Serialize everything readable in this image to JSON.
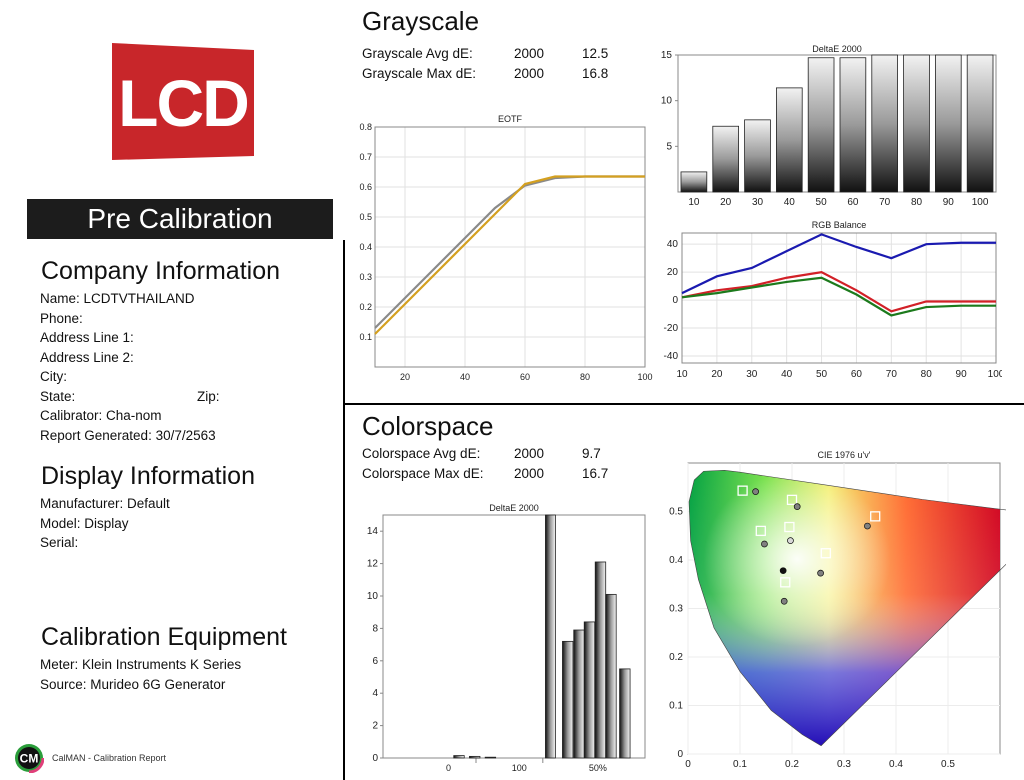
{
  "logo_text": "LCD",
  "banner": "Pre Calibration",
  "company": {
    "heading": "Company Information",
    "name": "Name: LCDTVTHAILAND",
    "phone": "Phone:",
    "address1": "Address Line 1:",
    "address2": "Address Line 2:",
    "city": "City:",
    "state": "State:",
    "zip": "Zip:",
    "calibrator": "Calibrator: Cha-nom",
    "report": "Report Generated: 30/7/2563"
  },
  "display": {
    "heading": "Display Information",
    "manufacturer": "Manufacturer: Default",
    "model": "Model: Display",
    "serial": "Serial:"
  },
  "equipment": {
    "heading": "Calibration Equipment",
    "meter": "Meter: Klein Instruments K Series",
    "source": "Source: Murideo 6G Generator"
  },
  "footer": {
    "logo": "CM",
    "text": "CalMAN - Calibration Report"
  },
  "grayscale": {
    "heading": "Grayscale",
    "avg_label": "Grayscale Avg dE:",
    "avg_std": "2000",
    "avg_val": "12.5",
    "max_label": "Grayscale Max dE:",
    "max_std": "2000",
    "max_val": "16.8"
  },
  "colorspace": {
    "heading": "Colorspace",
    "avg_label": "Colorspace Avg dE:",
    "avg_std": "2000",
    "avg_val": "9.7",
    "max_label": "Colorspace Max dE:",
    "max_std": "2000",
    "max_val": "16.7"
  },
  "colors": {
    "red": "#d22027",
    "blue": "#1a1ab0",
    "green": "#1c7a1c",
    "eotf_target": "#d4a020",
    "eotf_measured": "#8a8a8a"
  },
  "chart_data": [
    {
      "type": "line",
      "title": "EOTF",
      "x": [
        10,
        20,
        30,
        40,
        50,
        60,
        70,
        80,
        90,
        100
      ],
      "xticks": [
        20,
        40,
        60,
        80,
        100
      ],
      "xlim": [
        10,
        100
      ],
      "yticks": [
        "0.1",
        "0.2",
        "0.3",
        "0.4",
        "0.5",
        "0.6",
        "0.7",
        "0.8"
      ],
      "ylim": [
        0,
        0.8
      ],
      "series": [
        {
          "color": "#8a8a8a",
          "values": [
            0.13,
            0.23,
            0.33,
            0.43,
            0.53,
            0.605,
            0.63,
            0.635,
            0.635,
            0.635
          ]
        },
        {
          "color": "#d4a020",
          "values": [
            0.11,
            0.21,
            0.31,
            0.41,
            0.51,
            0.61,
            0.635,
            0.635,
            0.635,
            0.635
          ]
        }
      ]
    },
    {
      "type": "bar",
      "title": "DeltaE 2000",
      "categories": [
        "10",
        "20",
        "30",
        "40",
        "50",
        "60",
        "70",
        "80",
        "90",
        "100"
      ],
      "values": [
        2.2,
        7.2,
        7.9,
        11.4,
        14.7,
        14.7,
        15,
        15,
        15,
        15
      ],
      "yticks": [
        "5",
        "10",
        "15"
      ],
      "ylim": [
        0,
        15
      ]
    },
    {
      "type": "line",
      "title": "RGB Balance",
      "x": [
        10,
        20,
        30,
        40,
        50,
        60,
        70,
        80,
        90,
        100
      ],
      "xticks": [
        "10",
        "20",
        "30",
        "40",
        "50",
        "60",
        "70",
        "80",
        "90",
        "100"
      ],
      "yticks": [
        "-40",
        "-20",
        "0",
        "20",
        "40"
      ],
      "ylim": [
        -45,
        48
      ],
      "series": [
        {
          "color": "#1a1ab0",
          "values": [
            5,
            17,
            23,
            35,
            47,
            38,
            30,
            40,
            41,
            41
          ]
        },
        {
          "color": "#d22027",
          "values": [
            2,
            7,
            10,
            16,
            20,
            7,
            -8,
            -1,
            -1,
            -1
          ]
        },
        {
          "color": "#1c7a1c",
          "values": [
            2,
            5,
            9,
            13,
            16,
            4,
            -11,
            -5,
            -4,
            -4
          ]
        }
      ]
    },
    {
      "type": "bar",
      "title": "DeltaE 2000",
      "xticks": [
        "0",
        "100",
        "50%"
      ],
      "values": [
        0.15,
        0.1,
        0.05,
        15,
        7.2,
        7.9,
        8.4,
        12.1,
        10.1,
        5.5
      ],
      "yticks": [
        "0",
        "2",
        "4",
        "6",
        "8",
        "10",
        "12",
        "14"
      ],
      "ylim": [
        0,
        15
      ]
    },
    {
      "type": "scatter",
      "title": "CIE 1976 u'v'",
      "xticks": [
        "0",
        "0.1",
        "0.2",
        "0.3",
        "0.4",
        "0.5"
      ],
      "xlim": [
        0,
        0.6
      ],
      "yticks": [
        "0",
        "0.1",
        "0.2",
        "0.3",
        "0.4",
        "0.5"
      ],
      "ylim": [
        0,
        0.6
      ],
      "targets": [
        [
          0.105,
          0.543
        ],
        [
          0.2,
          0.524
        ],
        [
          0.36,
          0.49
        ],
        [
          0.14,
          0.46
        ],
        [
          0.195,
          0.468
        ],
        [
          0.265,
          0.414
        ],
        [
          0.187,
          0.354
        ]
      ],
      "measured": [
        {
          "u": 0.13,
          "v": 0.541,
          "fill": "#808080"
        },
        {
          "u": 0.21,
          "v": 0.51,
          "fill": "#808080"
        },
        {
          "u": 0.345,
          "v": 0.47,
          "fill": "#808080"
        },
        {
          "u": 0.147,
          "v": 0.433,
          "fill": "#808080"
        },
        {
          "u": 0.197,
          "v": 0.44,
          "fill": "#d8d8d8"
        },
        {
          "u": 0.255,
          "v": 0.373,
          "fill": "#808080"
        },
        {
          "u": 0.183,
          "v": 0.378,
          "fill": "#111111"
        },
        {
          "u": 0.185,
          "v": 0.315,
          "fill": "#808080"
        }
      ]
    }
  ]
}
